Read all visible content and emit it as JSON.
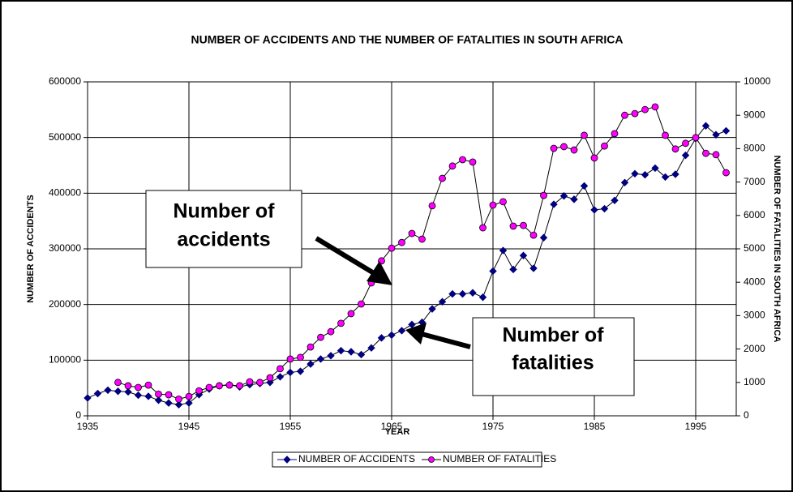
{
  "chart_data": {
    "type": "line",
    "title": "NUMBER OF ACCIDENTS AND THE NUMBER OF FATALITIES IN SOUTH AFRICA",
    "x_label": "YEAR",
    "y_label": "NUMBER OF ACCIDENTS",
    "y2_label": "NUMBER OF FATALITIES IN SOUTH AFRICA",
    "x": [
      1935,
      1936,
      1937,
      1938,
      1939,
      1940,
      1941,
      1942,
      1943,
      1944,
      1945,
      1946,
      1947,
      1948,
      1949,
      1950,
      1951,
      1952,
      1953,
      1954,
      1955,
      1956,
      1957,
      1958,
      1959,
      1960,
      1961,
      1962,
      1963,
      1964,
      1965,
      1966,
      1967,
      1968,
      1969,
      1970,
      1971,
      1972,
      1973,
      1974,
      1975,
      1976,
      1977,
      1978,
      1979,
      1980,
      1981,
      1982,
      1983,
      1984,
      1985,
      1986,
      1987,
      1988,
      1989,
      1990,
      1991,
      1992,
      1993,
      1994,
      1995,
      1996,
      1997,
      1998
    ],
    "xlim": [
      1935,
      1999
    ],
    "xticks": [
      1935,
      1945,
      1955,
      1965,
      1975,
      1985,
      1995
    ],
    "ylim": [
      0,
      600000
    ],
    "yticks": [
      0,
      100000,
      200000,
      300000,
      400000,
      500000,
      600000
    ],
    "y2lim": [
      0,
      10000
    ],
    "y2ticks": [
      0,
      1000,
      2000,
      3000,
      4000,
      5000,
      6000,
      7000,
      8000,
      9000,
      10000
    ],
    "grid": true,
    "legend": "bottom",
    "series": [
      {
        "name": "NUMBER OF ACCIDENTS",
        "color": "#000080",
        "marker": "diamond",
        "values": [
          32000,
          40000,
          46000,
          44000,
          43000,
          37000,
          35000,
          28000,
          23000,
          20000,
          23000,
          38000,
          48000,
          54000,
          56000,
          52000,
          56000,
          58000,
          60000,
          70000,
          78000,
          80000,
          93000,
          102000,
          108000,
          117000,
          115000,
          110000,
          122000,
          140000,
          145000,
          153000,
          164000,
          168000,
          192000,
          205000,
          219000,
          219000,
          221000,
          213000,
          260000,
          297000,
          263000,
          288000,
          265000,
          320000,
          380000,
          395000,
          389000,
          413000,
          370000,
          372000,
          387000,
          419000,
          435000,
          433000,
          445000,
          429000,
          434000,
          468000,
          498000,
          521000,
          505000,
          512000
        ]
      },
      {
        "name": "NUMBER OF FATALITIES",
        "color": "#ff00ff",
        "marker": "circle",
        "axis": "y2",
        "values": [
          null,
          null,
          null,
          1000,
          900,
          850,
          920,
          650,
          630,
          500,
          580,
          750,
          850,
          900,
          920,
          900,
          1020,
          1000,
          1140,
          1410,
          1700,
          1750,
          2060,
          2350,
          2520,
          2770,
          3060,
          3350,
          3980,
          4640,
          5020,
          5190,
          5460,
          5290,
          6290,
          7110,
          7480,
          7670,
          7600,
          5630,
          6310,
          6410,
          5680,
          5700,
          5410,
          6600,
          8010,
          8060,
          7960,
          8400,
          7720,
          8080,
          8450,
          9000,
          9050,
          9170,
          9250,
          8400,
          7990,
          8160,
          8330,
          7860,
          7820,
          7280
        ]
      }
    ],
    "annotations": [
      {
        "lines": [
          "Number of",
          "accidents"
        ]
      },
      {
        "lines": [
          "Number of",
          "fatalities"
        ]
      }
    ]
  }
}
